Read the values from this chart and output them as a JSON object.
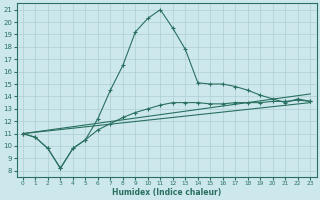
{
  "xlabel": "Humidex (Indice chaleur)",
  "background_color": "#cce8ec",
  "grid_color": "#b0ced2",
  "line_color": "#2a7060",
  "xlim": [
    -0.5,
    23.5
  ],
  "ylim": [
    7.5,
    21.5
  ],
  "xticks": [
    0,
    1,
    2,
    3,
    4,
    5,
    6,
    7,
    8,
    9,
    10,
    11,
    12,
    13,
    14,
    15,
    16,
    17,
    18,
    19,
    20,
    21,
    22,
    23
  ],
  "yticks": [
    8,
    9,
    10,
    11,
    12,
    13,
    14,
    15,
    16,
    17,
    18,
    19,
    20,
    21
  ],
  "curve1_x": [
    0,
    1,
    2,
    3,
    4,
    5,
    6,
    7,
    8,
    9,
    10,
    11,
    12,
    13,
    14,
    15,
    16,
    17,
    18,
    19,
    20,
    21,
    22,
    23
  ],
  "curve1_y": [
    11.0,
    10.7,
    9.8,
    8.2,
    9.8,
    10.5,
    12.2,
    14.5,
    16.5,
    19.2,
    20.3,
    21.0,
    19.5,
    17.8,
    15.1,
    15.0,
    15.0,
    14.8,
    14.5,
    14.1,
    13.8,
    13.5,
    13.8,
    13.6
  ],
  "curve2_x": [
    0,
    1,
    2,
    3,
    4,
    5,
    6,
    7,
    8,
    9,
    10,
    11,
    12,
    13,
    14,
    15,
    16,
    17,
    18,
    19,
    20,
    21,
    22,
    23
  ],
  "curve2_y": [
    11.0,
    10.7,
    9.8,
    8.2,
    9.8,
    10.5,
    11.3,
    11.8,
    12.3,
    12.7,
    13.0,
    13.3,
    13.5,
    13.5,
    13.5,
    13.4,
    13.4,
    13.5,
    13.5,
    13.5,
    13.6,
    13.6,
    13.7,
    13.6
  ],
  "line3_x": [
    0,
    23
  ],
  "line3_y": [
    11.0,
    13.5
  ],
  "line4_x": [
    0,
    23
  ],
  "line4_y": [
    11.0,
    14.2
  ]
}
